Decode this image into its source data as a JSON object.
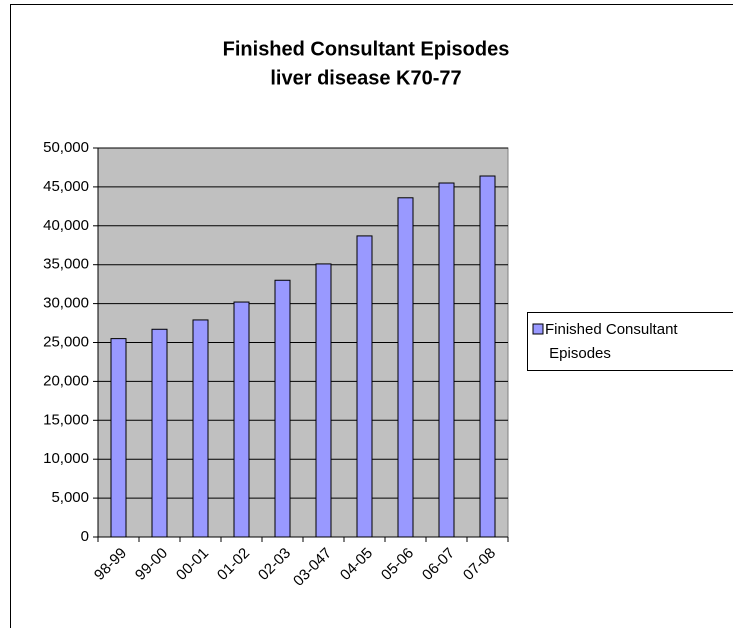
{
  "chart_data": {
    "type": "bar",
    "title": "Finished Consultant Episodes",
    "subtitle": "liver disease K70-77",
    "categories": [
      "98-99",
      "99-00",
      "00-01",
      "01-02",
      "02-03",
      "03-047",
      "04-05",
      "05-06",
      "06-07",
      "07-08"
    ],
    "series": [
      {
        "name": "Finished Consultant Episodes",
        "color": "#9999ff",
        "values": [
          25500,
          26700,
          27900,
          30200,
          33000,
          35100,
          38700,
          43600,
          45500,
          46400
        ]
      }
    ],
    "ylim": [
      0,
      50000
    ],
    "yticks": [
      0,
      {
        "value": 5000,
        "label": "5,000"
      },
      {
        "value": 10000,
        "label": "10,000"
      },
      {
        "value": 15000,
        "label": "15,000"
      },
      {
        "value": 20000,
        "label": "20,000"
      },
      {
        "value": 25000,
        "label": "25,000"
      },
      {
        "value": 30000,
        "label": "30,000"
      },
      {
        "value": 35000,
        "label": "35,000"
      },
      {
        "value": 40000,
        "label": "40,000"
      },
      {
        "value": 45000,
        "label": "45,000"
      },
      {
        "value": 50000,
        "label": "50,000"
      }
    ],
    "grid": true,
    "legend": "right",
    "plot_background": "#c0c0c0"
  }
}
